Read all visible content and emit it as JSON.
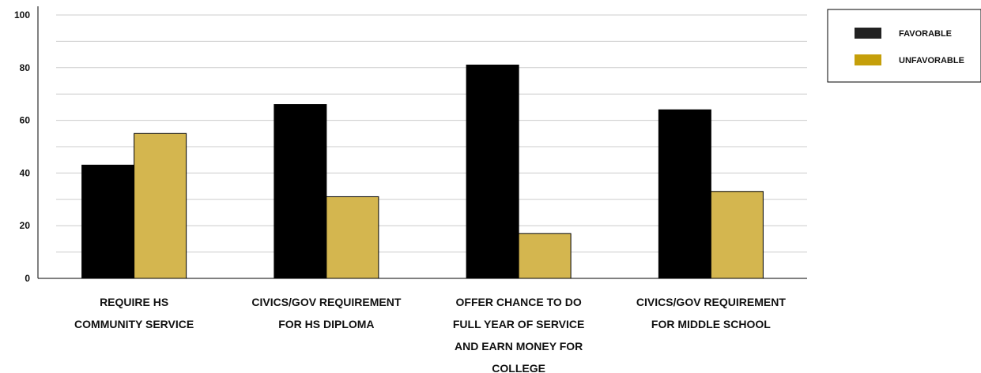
{
  "chart_data": {
    "type": "bar",
    "categories": [
      [
        "REQUIRE HS",
        "COMMUNITY SERVICE"
      ],
      [
        "CIVICS/GOV REQUIREMENT",
        "FOR HS DIPLOMA"
      ],
      [
        "OFFER CHANCE TO DO",
        "FULL YEAR OF SERVICE",
        "AND EARN MONEY FOR",
        "COLLEGE"
      ],
      [
        "CIVICS/GOV REQUIREMENT",
        "FOR MIDDLE SCHOOL"
      ]
    ],
    "series": [
      {
        "name": "FAVORABLE",
        "values": [
          43,
          66,
          81,
          64
        ]
      },
      {
        "name": "UNFAVORABLE",
        "values": [
          55,
          31,
          17,
          33
        ]
      }
    ],
    "ylim": [
      0,
      100
    ],
    "yticks": [
      0,
      20,
      40,
      60,
      80,
      100
    ],
    "grid": true,
    "legend": "top-right",
    "colors": {
      "bar_favorable": "#000000",
      "bar_unfavorable": "#d4b64f",
      "legend_favorable": "#222222",
      "legend_unfavorable": "#c59f0a",
      "grid": "#cccccc"
    }
  }
}
